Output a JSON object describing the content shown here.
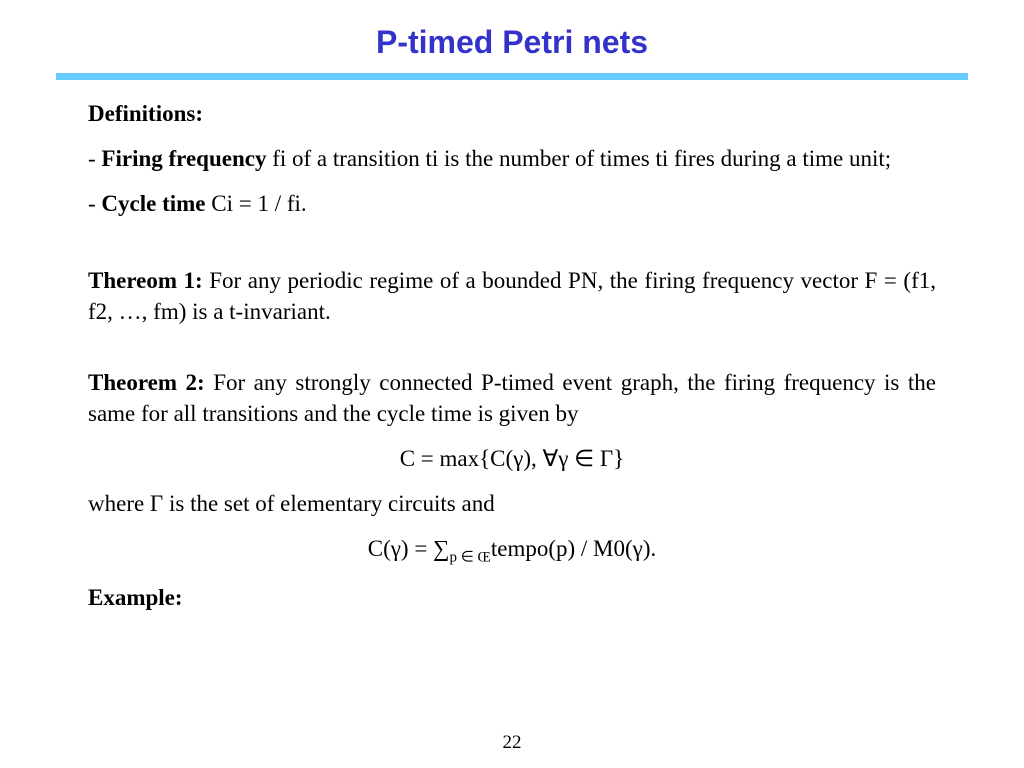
{
  "title": "P-timed Petri nets",
  "divider_color": "#66ccff",
  "title_color": "#3333cc",
  "paragraphs": {
    "definitions_label": "Definitions:",
    "firing_freq_bold": "Firing frequency",
    "firing_freq_rest": " fi of a transition ti is the number of times ti fires during a time unit;",
    "cycle_time_bold": "Cycle time",
    "cycle_time_rest": " Ci = 1 / fi.",
    "theorem1_bold": "Thereom 1:",
    "theorem1_rest": " For any periodic regime of a bounded PN, the firing frequency vector F = (f1, f2, …, fm) is a t-invariant.",
    "theorem2_bold": "Theorem 2:",
    "theorem2_rest": " For any strongly connected P-timed event graph, the firing frequency is the same for all transitions and the cycle time is given by",
    "formula1": "C = max{C(γ), ∀γ ∈ Γ}",
    "where_text": "where Γ is the set of  elementary circuits  and",
    "formula2_pre": "C(γ) = ∑",
    "formula2_sub": "p ∈ Œ",
    "formula2_post": "tempo(p) / M0(γ).",
    "example_label": "Example:"
  },
  "page_number": "22"
}
